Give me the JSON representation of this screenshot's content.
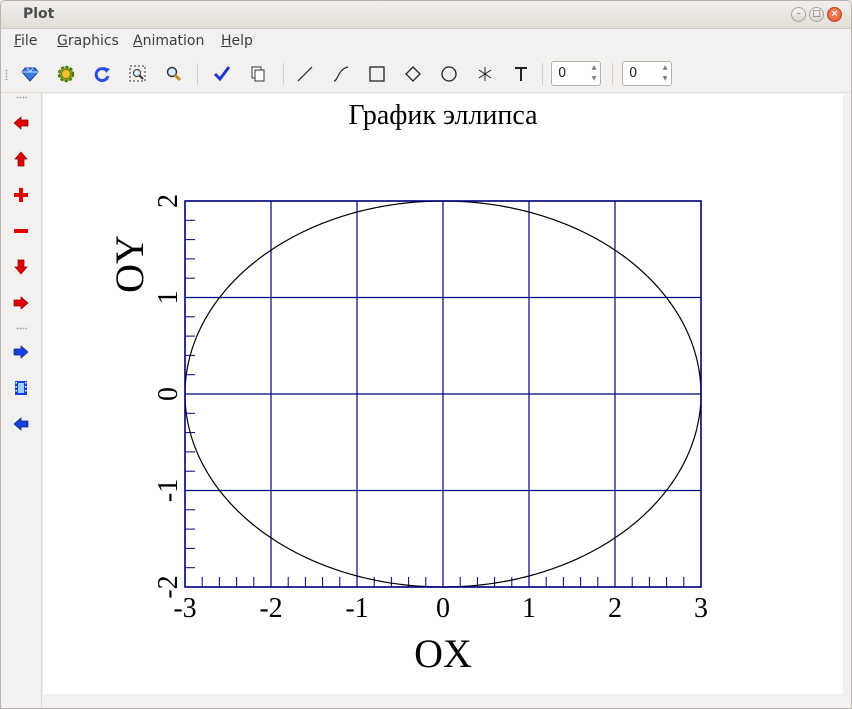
{
  "window": {
    "title": "Plot"
  },
  "menu": [
    {
      "mnemonic": "F",
      "rest": "ile"
    },
    {
      "mnemonic": "G",
      "rest": "raphics"
    },
    {
      "mnemonic": "A",
      "rest": "nimation"
    },
    {
      "mnemonic": "H",
      "rest": "elp"
    }
  ],
  "toolbar": {
    "tools": [
      "gem-icon",
      "gear-icon",
      "refresh-icon",
      "zoom-region-icon",
      "zoom-magnifier-icon",
      "checkmark-icon",
      "copy-icon",
      "line-tool-icon",
      "curve-tool-icon",
      "rectangle-tool-icon",
      "diamond-tool-icon",
      "circle-tool-icon",
      "asterisk-tool-icon",
      "text-tool-icon"
    ],
    "spin1_value": "0",
    "spin2_value": "0"
  },
  "side_tools": [
    "arrow-left-icon",
    "arrow-up-icon",
    "plus-icon",
    "minus-icon",
    "arrow-down-icon",
    "arrow-right-icon",
    "play-forward-icon",
    "film-icon",
    "play-back-icon"
  ],
  "colors": {
    "grid": "#000080",
    "curve": "#000000",
    "side_red": "#e00000",
    "side_blue": "#1a3fe0"
  },
  "chart_data": {
    "type": "line",
    "title": "График эллипса",
    "xlabel": "OX",
    "ylabel": "OY",
    "xlim": [
      -3,
      3
    ],
    "ylim": [
      -2,
      2
    ],
    "xticks": [
      "-3",
      "-2",
      "-1",
      "0",
      "1",
      "2",
      "3"
    ],
    "yticks": [
      "-2",
      "-1",
      "0",
      "1",
      "2"
    ],
    "grid": true,
    "series": [
      {
        "kind": "ellipse",
        "semi_axis_x": 3,
        "semi_axis_y": 2,
        "center": [
          0,
          0
        ]
      }
    ]
  }
}
